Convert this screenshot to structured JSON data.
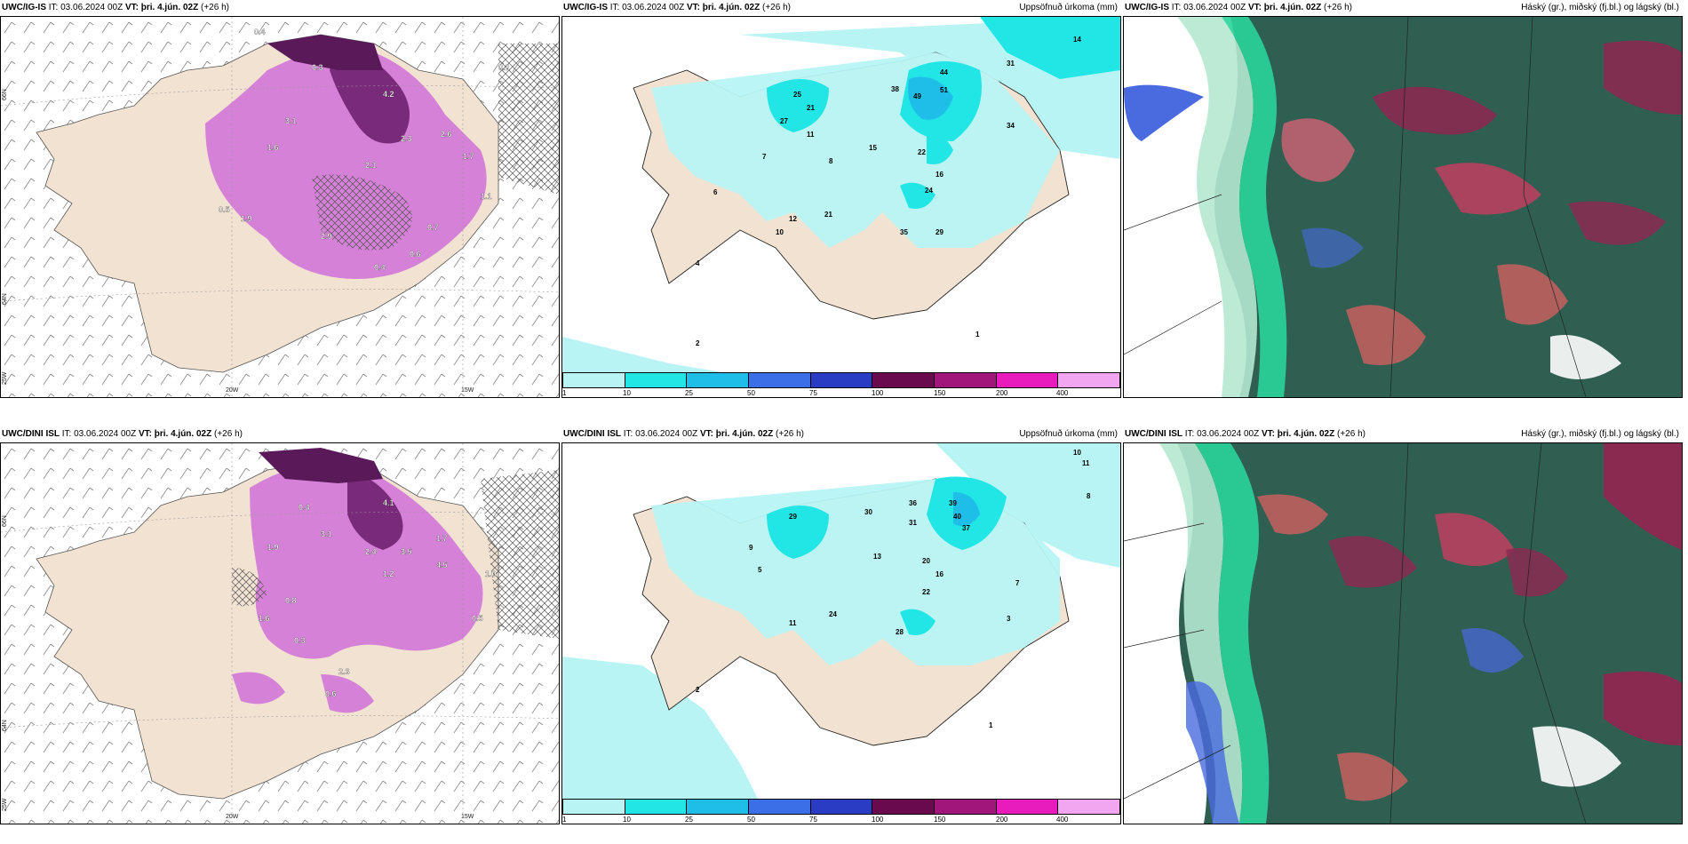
{
  "panels": [
    {
      "id": "p1",
      "model": "UWC/IG-IS",
      "it_label": "IT:",
      "it_value": "03.06.2024 00Z",
      "vt_label": "VT:",
      "vt_value": "þri. 4.jún. 02Z",
      "offset": "(+26 h)",
      "right_title": "",
      "axis_labels": [
        "20W",
        "15W",
        "66N",
        "64N",
        "25W"
      ],
      "value_labels": [
        "0.4",
        "0.2",
        "3.1",
        "2.9",
        "4.2",
        "2.1",
        "1.6",
        "0.5",
        "1.9",
        "2.3",
        "0.7",
        "1.7",
        "0.4",
        "0.6",
        "2.6",
        "1.1",
        "0.3"
      ]
    },
    {
      "id": "p2",
      "model": "UWC/IG-IS",
      "it_label": "IT:",
      "it_value": "03.06.2024 00Z",
      "vt_label": "VT:",
      "vt_value": "þri. 4.jún. 02Z",
      "offset": "(+26 h)",
      "right_title": "Uppsöfnuð úrkoma (mm)",
      "value_labels": [
        "14",
        "44",
        "51",
        "49",
        "31",
        "38",
        "34",
        "25",
        "27",
        "21",
        "15",
        "22",
        "16",
        "24",
        "35",
        "29",
        "21",
        "12",
        "10",
        "11",
        "8",
        "7",
        "6",
        "4",
        "2",
        "1"
      ],
      "legend_ticks": [
        "1",
        "10",
        "25",
        "50",
        "75",
        "100",
        "150",
        "200",
        "400"
      ],
      "legend_colors": [
        "#b8f4f4",
        "#22e6e6",
        "#1fbee8",
        "#3a6fe8",
        "#2b3cc4",
        "#6a0a4e",
        "#a0167a",
        "#e81bbc",
        "#f2a6f0"
      ]
    },
    {
      "id": "p3",
      "model": "UWC/IG-IS",
      "it_label": "IT:",
      "it_value": "03.06.2024 00Z",
      "vt_label": "VT:",
      "vt_value": "þri. 4.jún. 02Z",
      "offset": "(+26 h)",
      "right_title": "Háský (gr.), miðský (fj.bl.) og lágský (bl.)"
    },
    {
      "id": "p4",
      "model": "UWC/DINI ISL",
      "it_label": "IT:",
      "it_value": "03.06.2024 00Z",
      "vt_label": "VT:",
      "vt_value": "þri. 4.jún. 02Z",
      "offset": "(+26 h)",
      "right_title": "",
      "axis_labels": [
        "20W",
        "15W",
        "66N",
        "64N",
        "25W"
      ],
      "value_labels": [
        "0.4",
        "4.1",
        "3.5",
        "1.9",
        "2.4",
        "1.2",
        "0.8",
        "2.3",
        "1.7",
        "0.5",
        "3.1",
        "1.6",
        "0.6",
        "1.0",
        "4.5",
        "0.3"
      ]
    },
    {
      "id": "p5",
      "model": "UWC/DINI ISL",
      "it_label": "IT:",
      "it_value": "03.06.2024 00Z",
      "vt_label": "VT:",
      "vt_value": "þri. 4.jún. 02Z",
      "offset": "(+26 h)",
      "right_title": "Uppsöfnuð úrkoma (mm)",
      "value_labels": [
        "10",
        "11",
        "8",
        "39",
        "40",
        "37",
        "36",
        "31",
        "29",
        "30",
        "20",
        "22",
        "16",
        "24",
        "28",
        "13",
        "11",
        "9",
        "7",
        "5",
        "3",
        "2",
        "1"
      ],
      "legend_ticks": [
        "1",
        "10",
        "25",
        "50",
        "75",
        "100",
        "150",
        "200",
        "400"
      ],
      "legend_colors": [
        "#b8f4f4",
        "#22e6e6",
        "#1fbee8",
        "#3a6fe8",
        "#2b3cc4",
        "#6a0a4e",
        "#a0167a",
        "#e81bbc",
        "#f2a6f0"
      ]
    },
    {
      "id": "p6",
      "model": "UWC/DINI ISL",
      "it_label": "IT:",
      "it_value": "03.06.2024 00Z",
      "vt_label": "VT:",
      "vt_value": "þri. 4.jún. 02Z",
      "offset": "(+26 h)",
      "right_title": "Háský (gr.), miðský (fj.bl.) og lágský (bl.)"
    }
  ]
}
